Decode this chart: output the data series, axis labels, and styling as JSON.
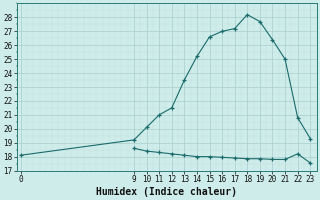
{
  "xlabel": "Humidex (Indice chaleur)",
  "x_upper": [
    0,
    9,
    10,
    11,
    12,
    13,
    14,
    15,
    16,
    17,
    18,
    19,
    20,
    21,
    22,
    23
  ],
  "y_upper": [
    18.1,
    19.2,
    20.1,
    21.0,
    21.5,
    23.5,
    25.2,
    26.6,
    27.0,
    27.2,
    28.2,
    27.7,
    26.4,
    25.0,
    20.8,
    19.3
  ],
  "x_lower": [
    9,
    10,
    11,
    12,
    13,
    14,
    15,
    16,
    17,
    18,
    19,
    20,
    21,
    22,
    23
  ],
  "y_lower": [
    18.6,
    18.4,
    18.3,
    18.2,
    18.1,
    18.0,
    18.0,
    17.95,
    17.9,
    17.85,
    17.85,
    17.8,
    17.8,
    18.2,
    17.55
  ],
  "line_color": "#1a6b6b",
  "bg_color": "#ceecea",
  "grid_color_major": "#aacfcc",
  "grid_color_minor": "#bcdedd",
  "ylim": [
    17,
    29
  ],
  "yticks": [
    17,
    18,
    19,
    20,
    21,
    22,
    23,
    24,
    25,
    26,
    27,
    28
  ],
  "xticks": [
    0,
    9,
    10,
    11,
    12,
    13,
    14,
    15,
    16,
    17,
    18,
    19,
    20,
    21,
    22,
    23
  ],
  "xlabel_fontsize": 7,
  "tick_fontsize": 5.5,
  "figsize": [
    3.2,
    2.0
  ],
  "dpi": 100
}
